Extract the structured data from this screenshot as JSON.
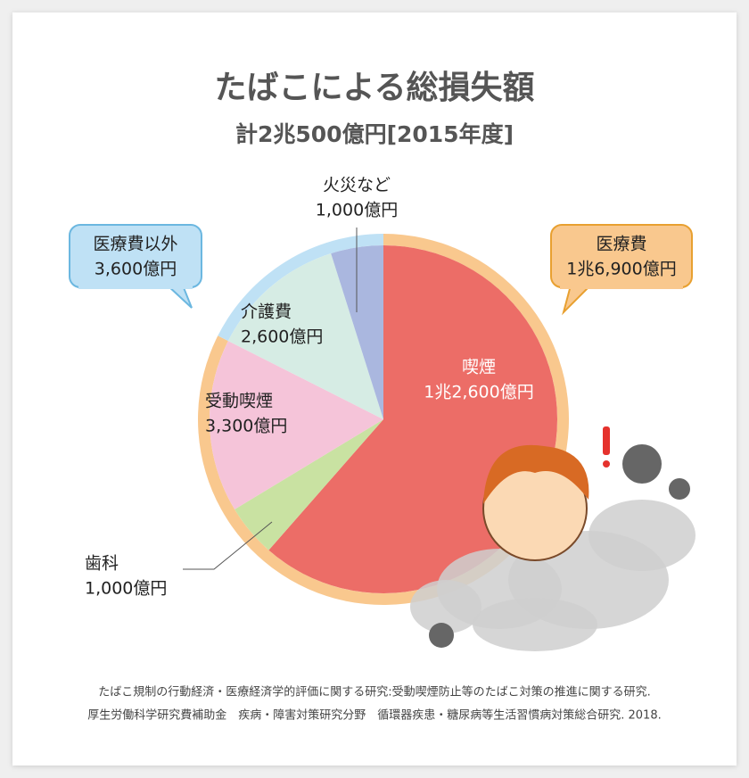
{
  "chart_data": {
    "type": "pie",
    "title": "たばこによる総損失額",
    "subtitle": "計2兆500億円[2015年度]",
    "categories": [
      "喫煙",
      "歯科",
      "受動喫煙",
      "介護費",
      "火災など"
    ],
    "values": [
      12600,
      1000,
      3300,
      2600,
      1000
    ],
    "value_labels": [
      "1兆2,600億円",
      "1,000億円",
      "3,300億円",
      "2,600億円",
      "1,000億円"
    ],
    "colors": [
      "#ec6d67",
      "#c9e2a2",
      "#f5c4d9",
      "#d6ece4",
      "#aab7df"
    ],
    "groups": [
      {
        "name": "医療費",
        "value": 16900,
        "value_label": "1兆6,900億円",
        "color": "#f9c88e"
      },
      {
        "name": "医療費以外",
        "value": 3600,
        "value_label": "3,600億円",
        "color": "#bfe1f5"
      }
    ],
    "source": [
      "たばこ規制の行動経済・医療経済学的評価に関する研究:受動喫煙防止等のたばこ対策の推進に関する研究.",
      "厚生労働科学研究費補助金　疾病・障害対策研究分野　循環器疾患・糖尿病等生活習慣病対策総合研究. 2018."
    ]
  }
}
